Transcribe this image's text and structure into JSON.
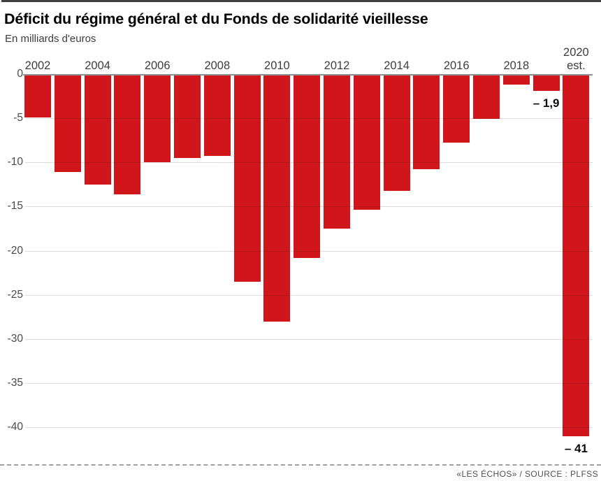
{
  "header": {
    "title": "Déficit du régime général et du Fonds de solidarité vieillesse",
    "subtitle": "En milliards d'euros"
  },
  "footer": {
    "credit": "«LES ÉCHOS» / SOURCE : PLFSS"
  },
  "chart_data": {
    "type": "bar",
    "title": "Déficit du régime général et du Fonds de solidarité vieillesse",
    "ylabel": "En milliards d'euros",
    "categories": [
      "2002",
      "2003",
      "2004",
      "2005",
      "2006",
      "2007",
      "2008",
      "2009",
      "2010",
      "2011",
      "2012",
      "2013",
      "2014",
      "2015",
      "2016",
      "2017",
      "2018",
      "2019",
      "2020"
    ],
    "values": [
      -4.9,
      -11.1,
      -12.5,
      -13.6,
      -10.0,
      -9.5,
      -9.3,
      -23.5,
      -28.0,
      -20.8,
      -17.5,
      -15.4,
      -13.2,
      -10.8,
      -7.8,
      -5.1,
      -1.2,
      -1.9,
      -41
    ],
    "last_category_note": "est.",
    "y_tick_labels": [
      "0",
      "-5",
      "-10",
      "-15",
      "-20",
      "-25",
      "-30",
      "-35",
      "-40"
    ],
    "x_ticks": [
      {
        "bar": 0,
        "lines": [
          "2002"
        ]
      },
      {
        "bar": 2,
        "lines": [
          "2004"
        ]
      },
      {
        "bar": 4,
        "lines": [
          "2006"
        ]
      },
      {
        "bar": 6,
        "lines": [
          "2008"
        ]
      },
      {
        "bar": 8,
        "lines": [
          "2010"
        ]
      },
      {
        "bar": 10,
        "lines": [
          "2012"
        ]
      },
      {
        "bar": 12,
        "lines": [
          "2014"
        ]
      },
      {
        "bar": 14,
        "lines": [
          "2016"
        ]
      },
      {
        "bar": 16,
        "lines": [
          "2018"
        ]
      },
      {
        "bar": 18,
        "lines": [
          "2020",
          "est."
        ]
      }
    ],
    "annotations": [
      {
        "bar": 17,
        "text": "– 1,9"
      },
      {
        "bar": 18,
        "text": "– 41"
      }
    ],
    "ylim": [
      -44,
      0
    ],
    "grid": true,
    "legend": null,
    "bar_color": "#d0161b",
    "zero_line_color": "#8f8f8f",
    "gridline_color": "#cccccc",
    "axis_text_color": "#4a4a4a"
  }
}
